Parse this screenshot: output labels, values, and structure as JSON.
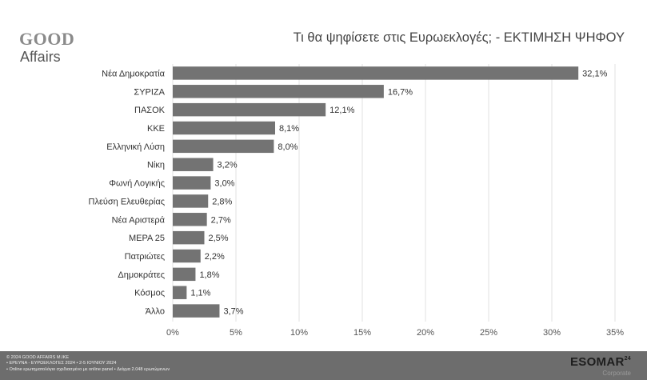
{
  "logo": {
    "line1": "GOOD",
    "line2": "Affairs"
  },
  "title": "Τι θα ψηφίσετε στις Ευρωεκλογές; - ΕΚΤΙΜΗΣΗ ΨΗΦΟΥ",
  "chart_data": {
    "type": "bar",
    "orientation": "horizontal",
    "categories": [
      "Νέα Δημοκρατία",
      "ΣΥΡΙΖΑ",
      "ΠΑΣΟΚ",
      "ΚΚΕ",
      "Ελληνική Λύση",
      "Νίκη",
      "Φωνή Λογικής",
      "Πλεύση Ελευθερίας",
      "Νέα Αριστερά",
      "ΜΕΡΑ 25",
      "Πατριώτες",
      "Δημοκράτες",
      "Κόσμος",
      "Άλλο"
    ],
    "values": [
      32.1,
      16.7,
      12.1,
      8.1,
      8.0,
      3.2,
      3.0,
      2.8,
      2.7,
      2.5,
      2.2,
      1.8,
      1.1,
      3.7
    ],
    "data_labels": [
      "32,1%",
      "16,7%",
      "12,1%",
      "8,1%",
      "8,0%",
      "3,2%",
      "3,0%",
      "2,8%",
      "2,7%",
      "2,5%",
      "2,2%",
      "1,8%",
      "1,1%",
      "3,7%"
    ],
    "xlim": [
      0,
      35
    ],
    "x_ticks": [
      0,
      5,
      10,
      15,
      20,
      25,
      30,
      35
    ],
    "x_tick_labels": [
      "0%",
      "5%",
      "10%",
      "15%",
      "20%",
      "25%",
      "30%",
      "35%"
    ],
    "grid": "vertical",
    "bar_color": "#737373"
  },
  "footer": {
    "lines": [
      "© 2024 GOOD AFFAIRS M.IKE",
      "• ΕΡΕΥΝΑ - ΕΥΡΩΕΚΛΟΓΕΣ 2024 • 2-5 ΙΟΥΝΙΟΥ 2024",
      "• Online ερωτηματολόγιο σχεδιασμένο με online panel • Δείγμα 2.048 ερωτώμενων"
    ],
    "esomar": "ESOMAR",
    "esomar_sup": "24",
    "esomar_sub": "Corporate"
  }
}
